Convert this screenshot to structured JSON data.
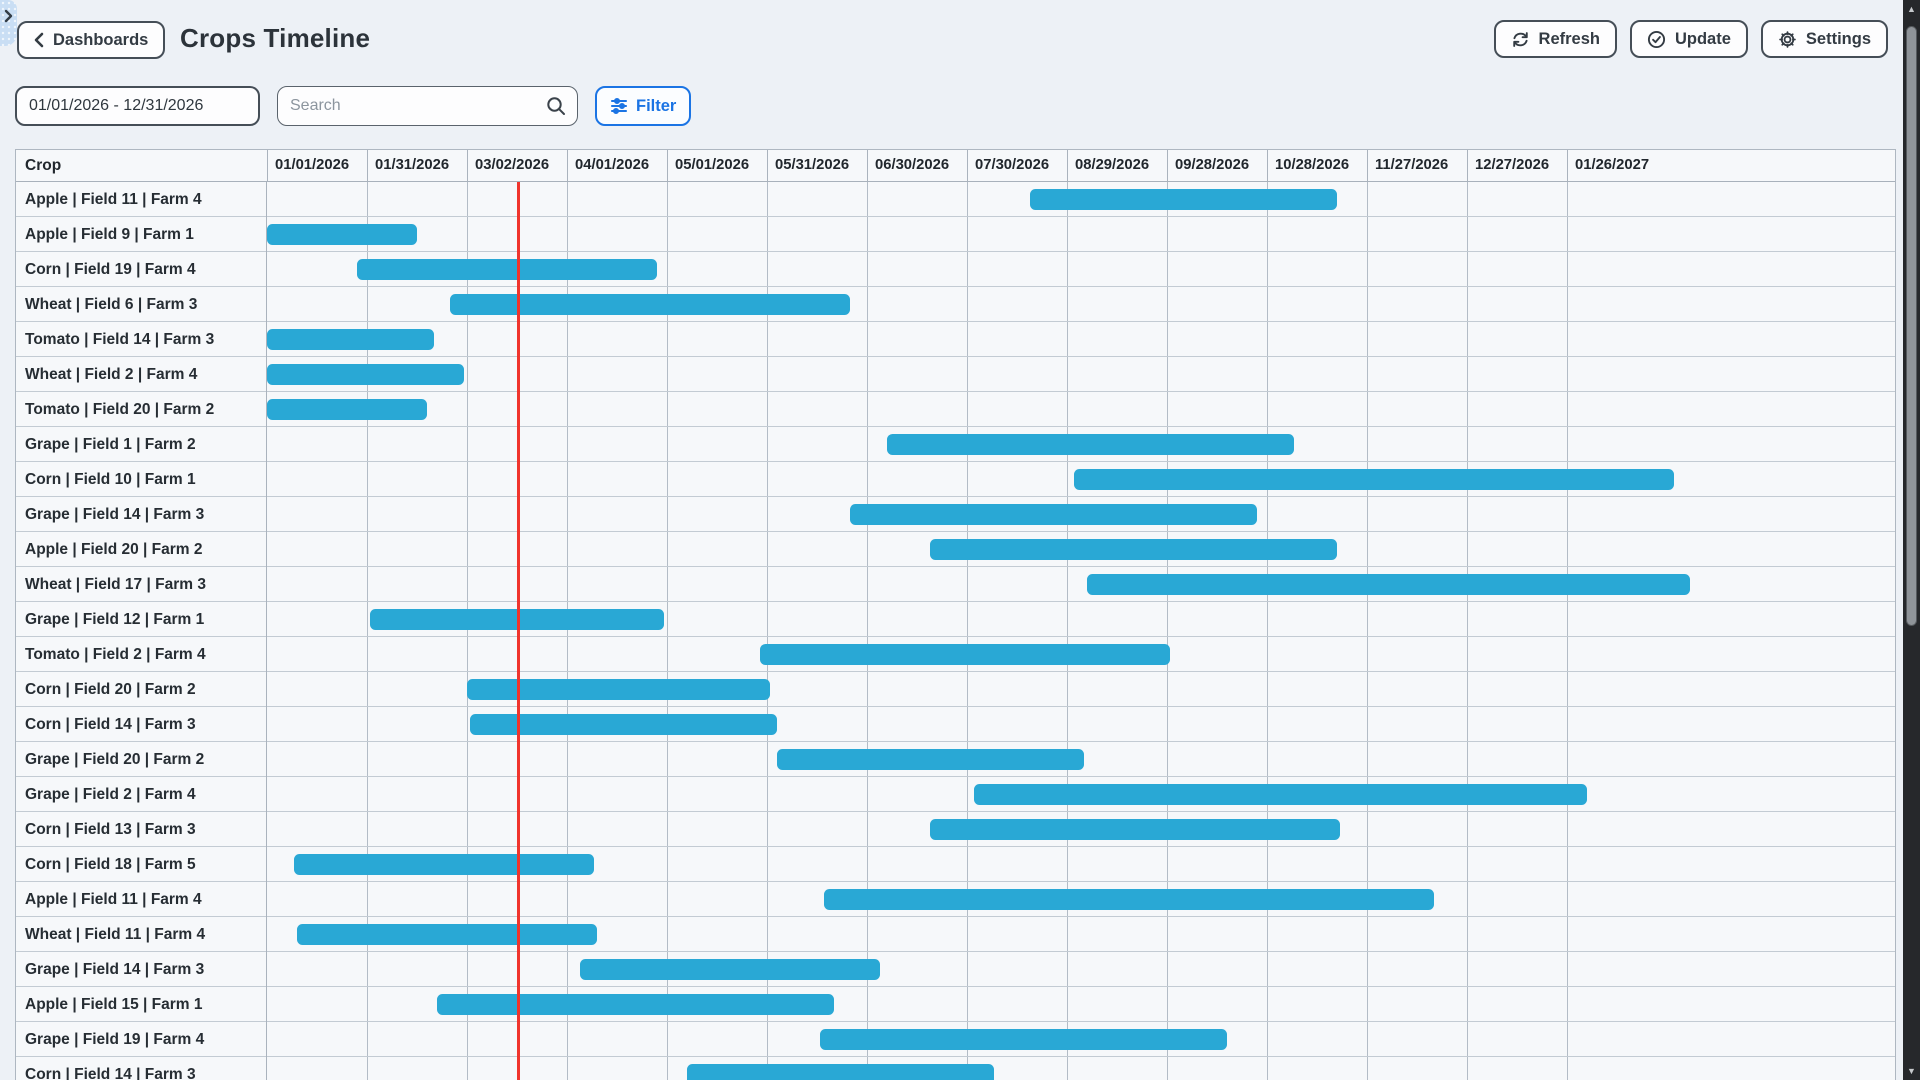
{
  "header": {
    "back_label": "Dashboards",
    "title": "Crops Timeline",
    "refresh_label": "Refresh",
    "update_label": "Update",
    "settings_label": "Settings"
  },
  "filters": {
    "date_range_value": "01/01/2026 - 12/31/2026",
    "search_placeholder": "Search",
    "filter_label": "Filter"
  },
  "table": {
    "crop_column_header": "Crop",
    "ticks": [
      "01/01/2026",
      "01/31/2026",
      "03/02/2026",
      "04/01/2026",
      "05/01/2026",
      "05/31/2026",
      "06/30/2026",
      "07/30/2026",
      "08/29/2026",
      "09/28/2026",
      "10/28/2026",
      "11/27/2026",
      "12/27/2026",
      "01/26/2027"
    ]
  },
  "icons": {
    "scroll_up": "▲",
    "scroll_down": "▼"
  },
  "colors": {
    "bar": "#29A8D5",
    "today_line": "#F0342C",
    "accent_blue": "#1B74E4"
  },
  "chart_data": {
    "type": "gantt",
    "title": "Crops Timeline",
    "timeline_start": "2026-01-01",
    "tick_interval_days": 30,
    "visible_range_label": "01/01/2026 - 12/31/2026",
    "today_line_date": "2026-03-17",
    "rows": [
      {
        "label": "Apple | Field 11 | Farm 4",
        "start": "2026-08-18",
        "end": "2026-11-18"
      },
      {
        "label": "Apple | Field 9 | Farm 1",
        "start": "2026-01-01",
        "end": "2026-02-15"
      },
      {
        "label": "Corn | Field 19 | Farm 4",
        "start": "2026-01-28",
        "end": "2026-04-28"
      },
      {
        "label": "Wheat | Field 6 | Farm 3",
        "start": "2026-02-25",
        "end": "2026-06-25"
      },
      {
        "label": "Tomato | Field 14 | Farm 3",
        "start": "2026-01-01",
        "end": "2026-02-20"
      },
      {
        "label": "Wheat | Field 2 | Farm 4",
        "start": "2026-01-01",
        "end": "2026-03-01"
      },
      {
        "label": "Tomato | Field 20 | Farm 2",
        "start": "2026-01-01",
        "end": "2026-02-18"
      },
      {
        "label": "Grape | Field 1 | Farm 2",
        "start": "2026-07-06",
        "end": "2026-11-05"
      },
      {
        "label": "Corn | Field 10 | Farm 1",
        "start": "2026-08-31",
        "end": "2027-02-27"
      },
      {
        "label": "Grape | Field 14 | Farm 3",
        "start": "2026-06-25",
        "end": "2026-10-25"
      },
      {
        "label": "Apple | Field 20 | Farm 2",
        "start": "2026-07-19",
        "end": "2026-11-18"
      },
      {
        "label": "Wheat | Field 17 | Farm 3",
        "start": "2026-09-04",
        "end": "2027-03-04"
      },
      {
        "label": "Grape | Field 12 | Farm 1",
        "start": "2026-02-01",
        "end": "2026-04-30"
      },
      {
        "label": "Tomato | Field 2 | Farm 4",
        "start": "2026-05-29",
        "end": "2026-09-29"
      },
      {
        "label": "Corn | Field 20 | Farm 2",
        "start": "2026-03-02",
        "end": "2026-06-01"
      },
      {
        "label": "Corn | Field 14 | Farm 3",
        "start": "2026-03-03",
        "end": "2026-06-03"
      },
      {
        "label": "Grape | Field 20 | Farm 2",
        "start": "2026-06-03",
        "end": "2026-09-03"
      },
      {
        "label": "Grape | Field 2 | Farm 4",
        "start": "2026-08-01",
        "end": "2027-02-01"
      },
      {
        "label": "Corn | Field 13 | Farm 3",
        "start": "2026-07-19",
        "end": "2026-11-19"
      },
      {
        "label": "Corn | Field 18 | Farm 5",
        "start": "2026-01-09",
        "end": "2026-04-09"
      },
      {
        "label": "Apple | Field 11 | Farm 4",
        "start": "2026-06-17",
        "end": "2026-12-17"
      },
      {
        "label": "Wheat | Field 11 | Farm 4",
        "start": "2026-01-10",
        "end": "2026-04-10"
      },
      {
        "label": "Grape | Field 14 | Farm 3",
        "start": "2026-04-05",
        "end": "2026-07-04"
      },
      {
        "label": "Apple | Field 15 | Farm 1",
        "start": "2026-02-21",
        "end": "2026-06-20"
      },
      {
        "label": "Grape | Field 19 | Farm 4",
        "start": "2026-06-16",
        "end": "2026-10-16"
      },
      {
        "label": "Corn | Field 14 | Farm 3",
        "start": "2026-05-07",
        "end": "2026-08-07"
      }
    ]
  }
}
